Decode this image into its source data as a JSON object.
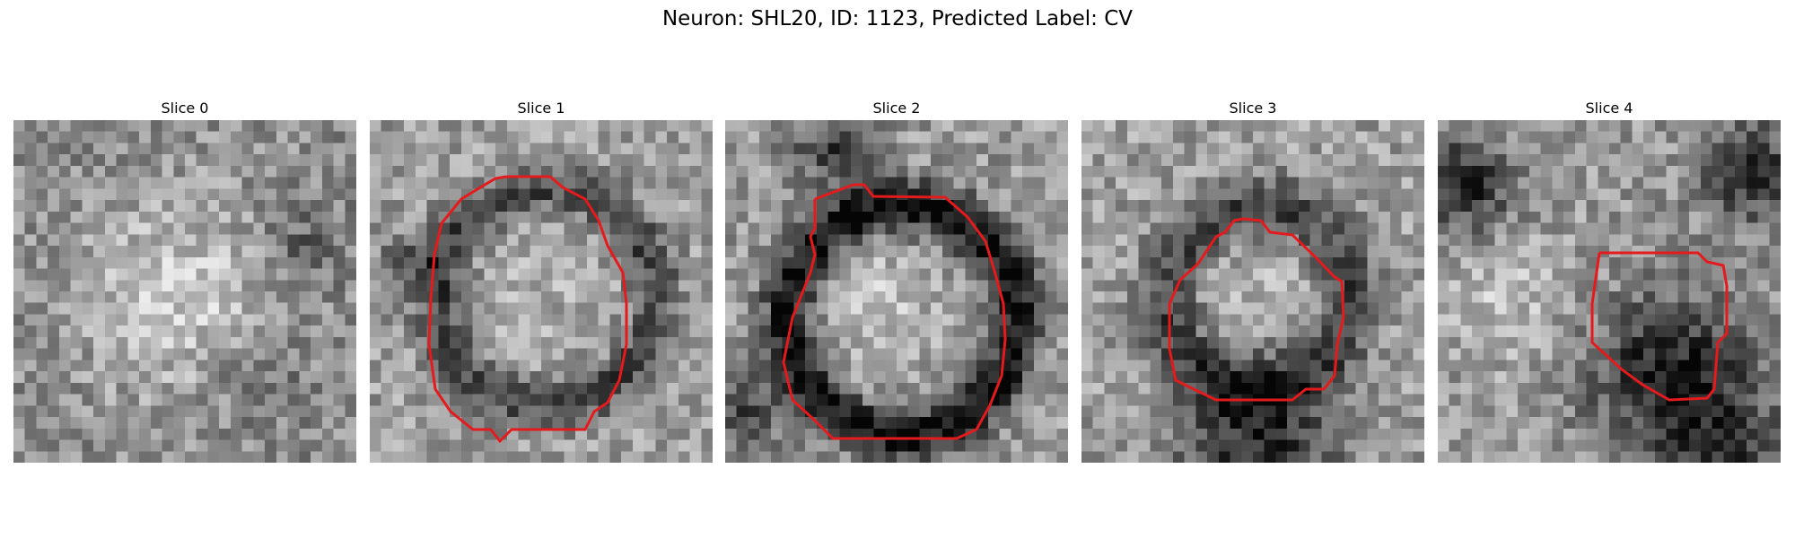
{
  "figure": {
    "title": "Neuron: SHL20, ID: 1123, Predicted Label: CV",
    "contour_color": "#e41a1c"
  },
  "panels": [
    {
      "title": "Slice 0",
      "has_contour": false
    },
    {
      "title": "Slice 1",
      "has_contour": true
    },
    {
      "title": "Slice 2",
      "has_contour": true
    },
    {
      "title": "Slice 3",
      "has_contour": true
    },
    {
      "title": "Slice 4",
      "has_contour": true
    }
  ]
}
